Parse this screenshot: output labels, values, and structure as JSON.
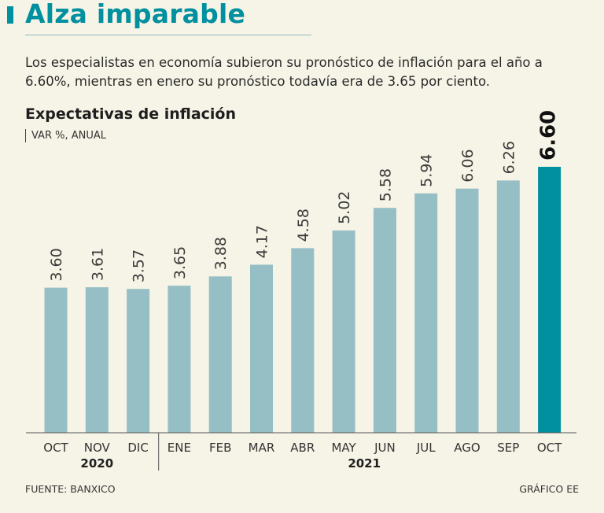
{
  "header": {
    "title": "Alza imparable",
    "subtitle": "Los especialistas en economía subieron su pronóstico de inflación para el año a 6.60%, mientras en enero su pronóstico todavía era de 3.65 por ciento."
  },
  "chart_data": {
    "type": "bar",
    "title": "Expectativas de inflación",
    "ylabel": "VAR %, ANUAL",
    "xlabel": "",
    "categories": [
      "OCT",
      "NOV",
      "DIC",
      "ENE",
      "FEB",
      "MAR",
      "ABR",
      "MAY",
      "JUN",
      "JUL",
      "AGO",
      "SEP",
      "OCT"
    ],
    "values": [
      3.6,
      3.61,
      3.57,
      3.65,
      3.88,
      4.17,
      4.58,
      5.02,
      5.58,
      5.94,
      6.06,
      6.26,
      6.6
    ],
    "value_labels": [
      "3.60",
      "3.61",
      "3.57",
      "3.65",
      "3.88",
      "4.17",
      "4.58",
      "5.02",
      "5.58",
      "5.94",
      "6.06",
      "6.26",
      "6.60"
    ],
    "highlight_index": 12,
    "year_groups": [
      {
        "label": "2020",
        "start": 0,
        "end": 2
      },
      {
        "label": "2021",
        "start": 3,
        "end": 12
      }
    ],
    "ylim": [
      0,
      6.6
    ],
    "grid": false,
    "colors": {
      "bar": "#96bec5",
      "highlight": "#00909f",
      "axis": "#555555",
      "label": "#3a3a3a"
    }
  },
  "footer": {
    "source": "FUENTE: BANXICO",
    "credit": "GRÁFICO EE"
  },
  "colors": {
    "accent": "#00909f",
    "background": "#f6f4e6"
  }
}
